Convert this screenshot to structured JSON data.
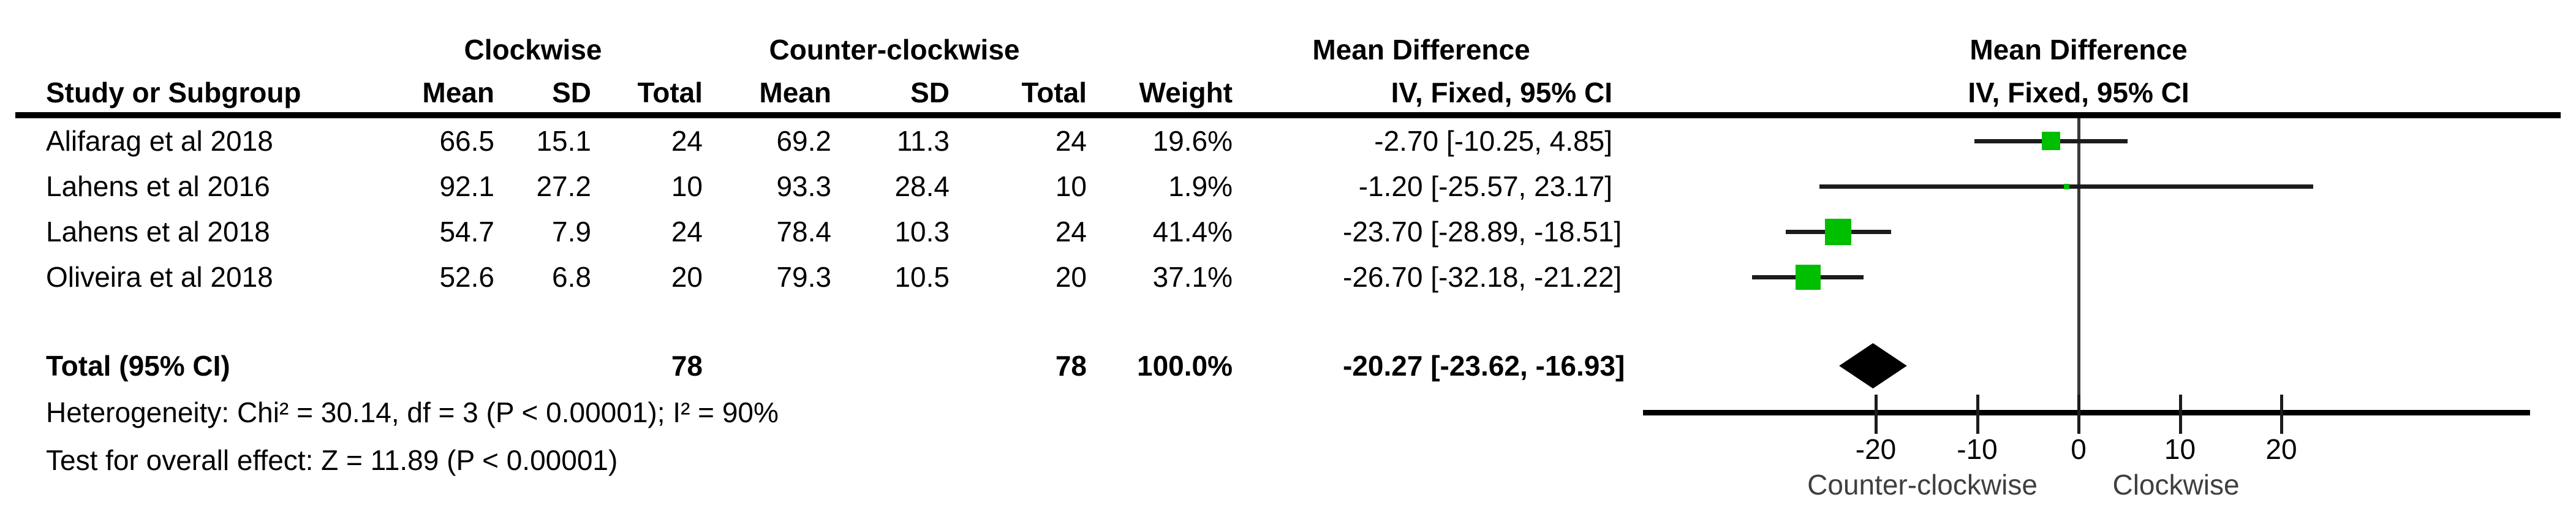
{
  "header": {
    "group_clockwise": "Clockwise",
    "group_counter_clockwise": "Counter-clockwise",
    "mean_difference_text_col": "Mean Difference",
    "mean_difference_plot_col": "Mean Difference",
    "study": "Study or Subgroup",
    "mean1": "Mean",
    "sd1": "SD",
    "total1": "Total",
    "mean2": "Mean",
    "sd2": "SD",
    "total2": "Total",
    "weight": "Weight",
    "ci_text_col": "IV, Fixed, 95% CI",
    "ci_plot_col": "IV, Fixed, 95% CI"
  },
  "rows": [
    {
      "study": "Alifarag et al 2018",
      "cw_mean": "66.5",
      "cw_sd": "15.1",
      "cw_total": "24",
      "ccw_mean": "69.2",
      "ccw_sd": "11.3",
      "ccw_total": "24",
      "weight": "19.6%",
      "md_ci": "-2.70 [-10.25, 4.85]"
    },
    {
      "study": "Lahens et al 2016",
      "cw_mean": "92.1",
      "cw_sd": "27.2",
      "cw_total": "10",
      "ccw_mean": "93.3",
      "ccw_sd": "28.4",
      "ccw_total": "10",
      "weight": "1.9%",
      "md_ci": "-1.20 [-25.57, 23.17]"
    },
    {
      "study": "Lahens et al 2018",
      "cw_mean": "54.7",
      "cw_sd": "7.9",
      "cw_total": "24",
      "ccw_mean": "78.4",
      "ccw_sd": "10.3",
      "ccw_total": "24",
      "weight": "41.4%",
      "md_ci": "-23.70 [-28.89, -18.51]"
    },
    {
      "study": "Oliveira et al 2018",
      "cw_mean": "52.6",
      "cw_sd": "6.8",
      "cw_total": "20",
      "ccw_mean": "79.3",
      "ccw_sd": "10.5",
      "ccw_total": "20",
      "weight": "37.1%",
      "md_ci": "-26.70 [-32.18, -21.22]"
    }
  ],
  "total_row": {
    "label": "Total (95% CI)",
    "cw_total": "78",
    "ccw_total": "78",
    "weight": "100.0%",
    "md_ci": "-20.27 [-23.62, -16.93]"
  },
  "footnotes": {
    "heterogeneity": "Heterogeneity: Chi² = 30.14, df = 3 (P < 0.00001); I² = 90%",
    "overall_effect": "Test for overall effect: Z = 11.89 (P < 0.00001)"
  },
  "chart_data": {
    "type": "forest",
    "title": "Mean Difference, IV, Fixed, 95% CI",
    "x_ticks": [
      -20,
      -10,
      0,
      10,
      20
    ],
    "x_axis_range_visible": [
      -43,
      44
    ],
    "axis_caption_left": "Counter-clockwise",
    "axis_caption_right": "Clockwise",
    "studies": [
      {
        "name": "Alifarag et al 2018",
        "md": -2.7,
        "lo": -10.25,
        "hi": 4.85,
        "weight_pct": 19.6
      },
      {
        "name": "Lahens et al 2016",
        "md": -1.2,
        "lo": -25.57,
        "hi": 23.17,
        "weight_pct": 1.9
      },
      {
        "name": "Lahens et al 2018",
        "md": -23.7,
        "lo": -28.89,
        "hi": -18.51,
        "weight_pct": 41.4
      },
      {
        "name": "Oliveira et al 2018",
        "md": -26.7,
        "lo": -32.18,
        "hi": -21.22,
        "weight_pct": 37.1
      }
    ],
    "overall": {
      "label": "Total (95% CI)",
      "md": -20.27,
      "lo": -23.62,
      "hi": -16.93,
      "weight_pct": 100.0
    },
    "heterogeneity": {
      "chi2": 30.14,
      "df": 3,
      "p": "< 0.00001",
      "i2_pct": 90
    },
    "overall_effect_test": {
      "z": 11.89,
      "p": "< 0.00001"
    }
  },
  "colors": {
    "marker_green": "#00BE00",
    "diamond_black": "#000000",
    "line_dark": "#1c1c1c",
    "zero_line": "#3a3a3a",
    "caption_gray": "#3f3f3f"
  }
}
